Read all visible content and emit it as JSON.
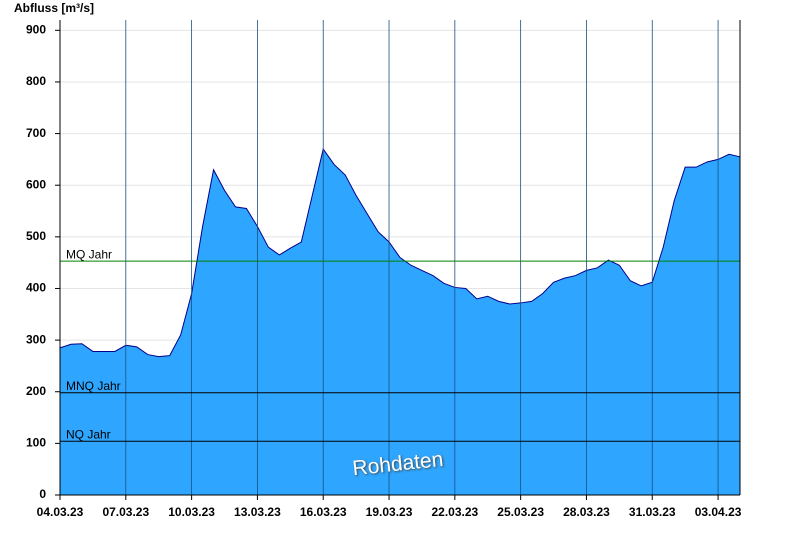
{
  "chart_data": {
    "type": "area",
    "y_label": "Abfluss [m³/s]",
    "watermark": "Rohdaten",
    "categories": [
      "04.03.23",
      null,
      null,
      null,
      null,
      null,
      "07.03.23",
      null,
      null,
      null,
      null,
      null,
      "10.03.23",
      null,
      null,
      null,
      null,
      null,
      "13.03.23",
      null,
      null,
      null,
      null,
      null,
      "16.03.23",
      null,
      null,
      null,
      null,
      null,
      "19.03.23",
      null,
      null,
      null,
      null,
      null,
      "22.03.23",
      null,
      null,
      null,
      null,
      null,
      "25.03.23",
      null,
      null,
      null,
      null,
      null,
      "28.03.23",
      null,
      null,
      null,
      null,
      null,
      "31.03.23",
      null,
      null,
      null,
      null,
      null,
      "03.04.23",
      null,
      null
    ],
    "values": [
      285,
      292,
      293,
      278,
      278,
      278,
      290,
      287,
      272,
      268,
      270,
      310,
      390,
      520,
      630,
      590,
      558,
      555,
      520,
      480,
      465,
      478,
      490,
      580,
      670,
      640,
      620,
      580,
      545,
      510,
      490,
      460,
      445,
      435,
      425,
      410,
      402,
      400,
      380,
      385,
      375,
      370,
      372,
      375,
      390,
      412,
      420,
      425,
      435,
      440,
      455,
      445,
      415,
      405,
      412,
      480,
      570,
      635,
      635,
      645,
      650,
      660,
      655
    ],
    "color": "#2ea6ff",
    "line_color": "#00008b",
    "ylim": [
      0,
      920
    ],
    "yticks": [
      0,
      100,
      200,
      300,
      400,
      500,
      600,
      700,
      800,
      900
    ],
    "grid": true,
    "reference_lines": [
      {
        "label": "MQ Jahr",
        "value": 453,
        "color": "#008000"
      },
      {
        "label": "MNQ Jahr",
        "value": 198,
        "color": "#000000"
      },
      {
        "label": "NQ Jahr",
        "value": 104,
        "color": "#000000"
      }
    ]
  }
}
